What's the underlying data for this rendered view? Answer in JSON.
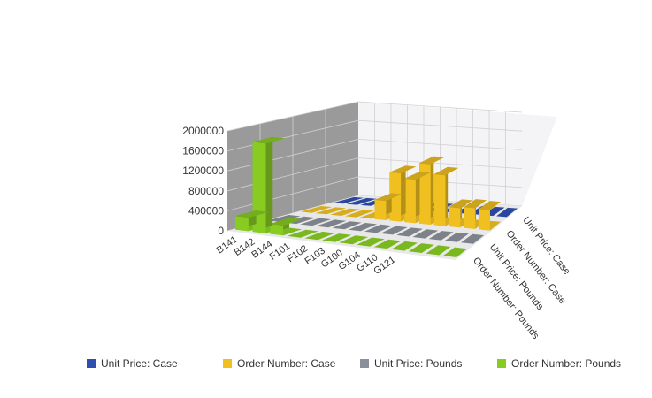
{
  "chart_data": {
    "type": "bar",
    "title": "",
    "categories": [
      "B141",
      "B142",
      "B144",
      "F101",
      "F102",
      "F103",
      "G100",
      "G104",
      "G110",
      "G121"
    ],
    "series": [
      {
        "name": "Unit Price: Case",
        "color": "#2f4fb0",
        "values": [
          0,
          0,
          0,
          0,
          0,
          0,
          0,
          0,
          0,
          0
        ]
      },
      {
        "name": "Order Number: Case",
        "color": "#f0c020",
        "values": [
          0,
          0,
          0,
          0,
          0,
          400000,
          1000000,
          900000,
          1250000,
          1050000
        ]
      },
      {
        "name": "Unit Price: Pounds",
        "color": "#8a8f99",
        "values": [
          0,
          0,
          0,
          0,
          0,
          0,
          0,
          0,
          0,
          0
        ]
      },
      {
        "name": "Order Number: Pounds",
        "color": "#88cc22",
        "values": [
          270000,
          1800000,
          200000,
          0,
          0,
          0,
          0,
          0,
          0,
          0
        ]
      }
    ],
    "extra_bars": [
      {
        "series": 1,
        "category": 10,
        "value": 400000
      },
      {
        "series": 1,
        "category": 11,
        "value": 430000
      },
      {
        "series": 1,
        "category": 12,
        "value": 420000
      }
    ],
    "yticks": [
      0,
      400000,
      800000,
      1200000,
      1600000,
      2000000
    ],
    "ylim": [
      0,
      2000000
    ],
    "legend_position": "bottom",
    "grid": true
  }
}
